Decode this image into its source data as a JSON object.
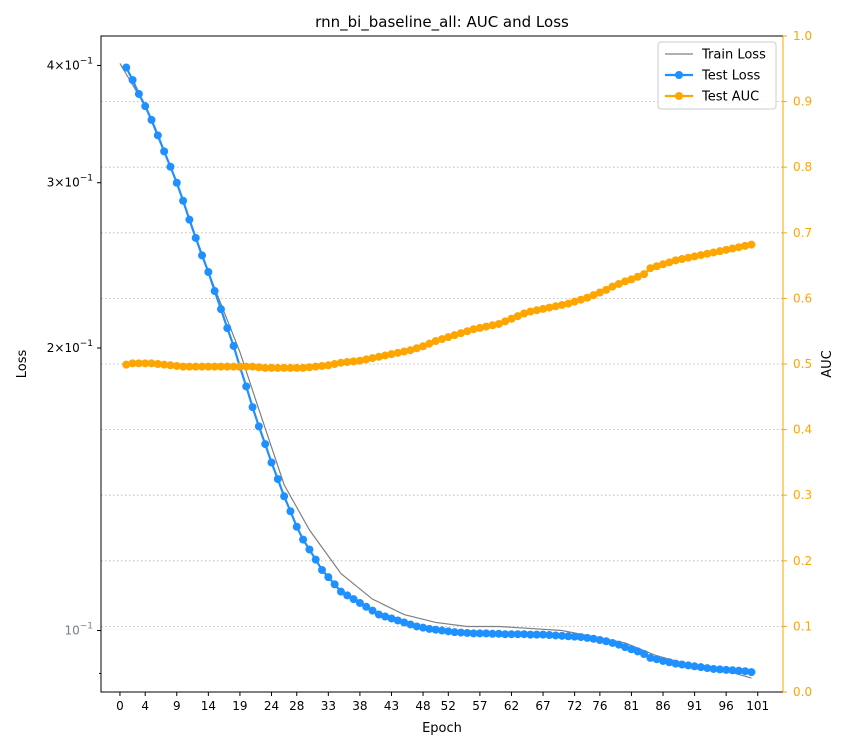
{
  "chart_data": {
    "type": "line",
    "title": "rnn_bi_baseline_all: AUC and Loss",
    "xlabel": "Epoch",
    "ylabel_left": "Loss",
    "ylabel_right": "AUC",
    "y_left_scale": "log",
    "y_left_lim": [
      0.086,
      0.43
    ],
    "y_left_tick_labels": [
      {
        "value": 0.4,
        "base": "4×10",
        "exp": "−1"
      },
      {
        "value": 0.3,
        "base": "3×10",
        "exp": "−1"
      },
      {
        "value": 0.2,
        "base": "2×10",
        "exp": "−1"
      },
      {
        "value": 0.1,
        "base": "10",
        "exp": "−1"
      }
    ],
    "y_right_lim": [
      0.0,
      1.0
    ],
    "y_right_ticks": [
      "0.0",
      "0.1",
      "0.2",
      "0.3",
      "0.4",
      "0.5",
      "0.6",
      "0.7",
      "0.8",
      "0.9",
      "1.0"
    ],
    "x_lim": [
      -3,
      105
    ],
    "x_ticks": [
      0,
      4,
      9,
      14,
      19,
      24,
      28,
      33,
      38,
      43,
      48,
      52,
      57,
      62,
      67,
      72,
      76,
      81,
      86,
      91,
      96,
      101
    ],
    "grid": "horizontal dotted (right axis)",
    "legend_position": "top-right",
    "colors": {
      "train_loss": "#808080",
      "test_loss": "#1e90ff",
      "test_auc": "#ffa500",
      "grid": "#b0b0b0"
    },
    "series": [
      {
        "name": "Train Loss",
        "axis": "left",
        "points": [
          [
            0,
            0.402
          ],
          [
            4,
            0.362
          ],
          [
            9,
            0.3
          ],
          [
            14,
            0.241
          ],
          [
            19,
            0.198
          ],
          [
            22,
            0.172
          ],
          [
            26,
            0.143
          ],
          [
            30,
            0.128
          ],
          [
            35,
            0.115
          ],
          [
            40,
            0.108
          ],
          [
            45,
            0.104
          ],
          [
            50,
            0.102
          ],
          [
            55,
            0.101
          ],
          [
            60,
            0.101
          ],
          [
            70,
            0.1
          ],
          [
            80,
            0.097
          ],
          [
            85,
            0.094
          ],
          [
            90,
            0.092
          ],
          [
            95,
            0.091
          ],
          [
            100,
            0.089
          ]
        ]
      },
      {
        "name": "Test Loss",
        "axis": "left",
        "points": [
          [
            1,
            0.398
          ],
          [
            2,
            0.386
          ],
          [
            3,
            0.373
          ],
          [
            4,
            0.362
          ],
          [
            5,
            0.35
          ],
          [
            6,
            0.337
          ],
          [
            7,
            0.324
          ],
          [
            8,
            0.312
          ],
          [
            9,
            0.3
          ],
          [
            10,
            0.287
          ],
          [
            11,
            0.274
          ],
          [
            12,
            0.262
          ],
          [
            13,
            0.251
          ],
          [
            14,
            0.241
          ],
          [
            15,
            0.23
          ],
          [
            16,
            0.22
          ],
          [
            17,
            0.21
          ],
          [
            18,
            0.201
          ],
          [
            19,
            0.191
          ],
          [
            20,
            0.182
          ],
          [
            21,
            0.173
          ],
          [
            22,
            0.165
          ],
          [
            23,
            0.158
          ],
          [
            24,
            0.151
          ],
          [
            25,
            0.145
          ],
          [
            26,
            0.139
          ],
          [
            27,
            0.134
          ],
          [
            28,
            0.129
          ],
          [
            29,
            0.125
          ],
          [
            30,
            0.122
          ],
          [
            31,
            0.119
          ],
          [
            32,
            0.116
          ],
          [
            33,
            0.114
          ],
          [
            34,
            0.112
          ],
          [
            35,
            0.11
          ],
          [
            36,
            0.109
          ],
          [
            37,
            0.108
          ],
          [
            38,
            0.107
          ],
          [
            39,
            0.106
          ],
          [
            40,
            0.105
          ],
          [
            41,
            0.104
          ],
          [
            42,
            0.1035
          ],
          [
            43,
            0.103
          ],
          [
            44,
            0.1025
          ],
          [
            45,
            0.102
          ],
          [
            46,
            0.1015
          ],
          [
            47,
            0.101
          ],
          [
            48,
            0.1007
          ],
          [
            49,
            0.1004
          ],
          [
            50,
            0.1002
          ],
          [
            51,
            0.1
          ],
          [
            52,
            0.0998
          ],
          [
            53,
            0.0996
          ],
          [
            54,
            0.0995
          ],
          [
            55,
            0.0994
          ],
          [
            56,
            0.0993
          ],
          [
            57,
            0.0993
          ],
          [
            58,
            0.0993
          ],
          [
            59,
            0.0992
          ],
          [
            60,
            0.0992
          ],
          [
            61,
            0.0991
          ],
          [
            62,
            0.0991
          ],
          [
            63,
            0.0991
          ],
          [
            64,
            0.0991
          ],
          [
            65,
            0.099
          ],
          [
            66,
            0.099
          ],
          [
            67,
            0.099
          ],
          [
            68,
            0.0989
          ],
          [
            69,
            0.0988
          ],
          [
            70,
            0.0987
          ],
          [
            71,
            0.0986
          ],
          [
            72,
            0.0985
          ],
          [
            73,
            0.0984
          ],
          [
            74,
            0.0982
          ],
          [
            75,
            0.098
          ],
          [
            76,
            0.0977
          ],
          [
            77,
            0.0974
          ],
          [
            78,
            0.097
          ],
          [
            79,
            0.0966
          ],
          [
            80,
            0.096
          ],
          [
            81,
            0.0955
          ],
          [
            82,
            0.095
          ],
          [
            83,
            0.0944
          ],
          [
            84,
            0.0935
          ],
          [
            85,
            0.0932
          ],
          [
            86,
            0.0928
          ],
          [
            87,
            0.0925
          ],
          [
            88,
            0.0922
          ],
          [
            89,
            0.092
          ],
          [
            90,
            0.0918
          ],
          [
            91,
            0.0916
          ],
          [
            92,
            0.0914
          ],
          [
            93,
            0.0912
          ],
          [
            94,
            0.091
          ],
          [
            95,
            0.0909
          ],
          [
            96,
            0.0908
          ],
          [
            97,
            0.0907
          ],
          [
            98,
            0.0906
          ],
          [
            99,
            0.0905
          ],
          [
            100,
            0.0903
          ]
        ]
      },
      {
        "name": "Test AUC",
        "axis": "right",
        "points": [
          [
            1,
            0.499
          ],
          [
            2,
            0.501
          ],
          [
            3,
            0.501
          ],
          [
            4,
            0.501
          ],
          [
            5,
            0.501
          ],
          [
            6,
            0.5
          ],
          [
            7,
            0.499
          ],
          [
            8,
            0.498
          ],
          [
            9,
            0.497
          ],
          [
            10,
            0.496
          ],
          [
            11,
            0.496
          ],
          [
            12,
            0.496
          ],
          [
            13,
            0.496
          ],
          [
            14,
            0.496
          ],
          [
            15,
            0.496
          ],
          [
            16,
            0.496
          ],
          [
            17,
            0.496
          ],
          [
            18,
            0.496
          ],
          [
            19,
            0.496
          ],
          [
            20,
            0.496
          ],
          [
            21,
            0.496
          ],
          [
            22,
            0.495
          ],
          [
            23,
            0.494
          ],
          [
            24,
            0.494
          ],
          [
            25,
            0.494
          ],
          [
            26,
            0.494
          ],
          [
            27,
            0.494
          ],
          [
            28,
            0.494
          ],
          [
            29,
            0.494
          ],
          [
            30,
            0.495
          ],
          [
            31,
            0.496
          ],
          [
            32,
            0.497
          ],
          [
            33,
            0.498
          ],
          [
            34,
            0.5
          ],
          [
            35,
            0.502
          ],
          [
            36,
            0.503
          ],
          [
            37,
            0.504
          ],
          [
            38,
            0.505
          ],
          [
            39,
            0.507
          ],
          [
            40,
            0.509
          ],
          [
            41,
            0.511
          ],
          [
            42,
            0.513
          ],
          [
            43,
            0.515
          ],
          [
            44,
            0.517
          ],
          [
            45,
            0.519
          ],
          [
            46,
            0.521
          ],
          [
            47,
            0.524
          ],
          [
            48,
            0.527
          ],
          [
            49,
            0.531
          ],
          [
            50,
            0.535
          ],
          [
            51,
            0.538
          ],
          [
            52,
            0.541
          ],
          [
            53,
            0.544
          ],
          [
            54,
            0.547
          ],
          [
            55,
            0.55
          ],
          [
            56,
            0.553
          ],
          [
            57,
            0.555
          ],
          [
            58,
            0.557
          ],
          [
            59,
            0.559
          ],
          [
            60,
            0.561
          ],
          [
            61,
            0.565
          ],
          [
            62,
            0.569
          ],
          [
            63,
            0.573
          ],
          [
            64,
            0.577
          ],
          [
            65,
            0.58
          ],
          [
            66,
            0.582
          ],
          [
            67,
            0.584
          ],
          [
            68,
            0.586
          ],
          [
            69,
            0.588
          ],
          [
            70,
            0.59
          ],
          [
            71,
            0.592
          ],
          [
            72,
            0.595
          ],
          [
            73,
            0.598
          ],
          [
            74,
            0.601
          ],
          [
            75,
            0.605
          ],
          [
            76,
            0.609
          ],
          [
            77,
            0.613
          ],
          [
            78,
            0.618
          ],
          [
            79,
            0.622
          ],
          [
            80,
            0.626
          ],
          [
            81,
            0.629
          ],
          [
            82,
            0.633
          ],
          [
            83,
            0.637
          ],
          [
            84,
            0.646
          ],
          [
            85,
            0.649
          ],
          [
            86,
            0.652
          ],
          [
            87,
            0.655
          ],
          [
            88,
            0.658
          ],
          [
            89,
            0.66
          ],
          [
            90,
            0.662
          ],
          [
            91,
            0.664
          ],
          [
            92,
            0.666
          ],
          [
            93,
            0.668
          ],
          [
            94,
            0.67
          ],
          [
            95,
            0.672
          ],
          [
            96,
            0.674
          ],
          [
            97,
            0.676
          ],
          [
            98,
            0.678
          ],
          [
            99,
            0.68
          ],
          [
            100,
            0.682
          ]
        ]
      }
    ],
    "legend": [
      "Train Loss",
      "Test Loss",
      "Test AUC"
    ]
  }
}
